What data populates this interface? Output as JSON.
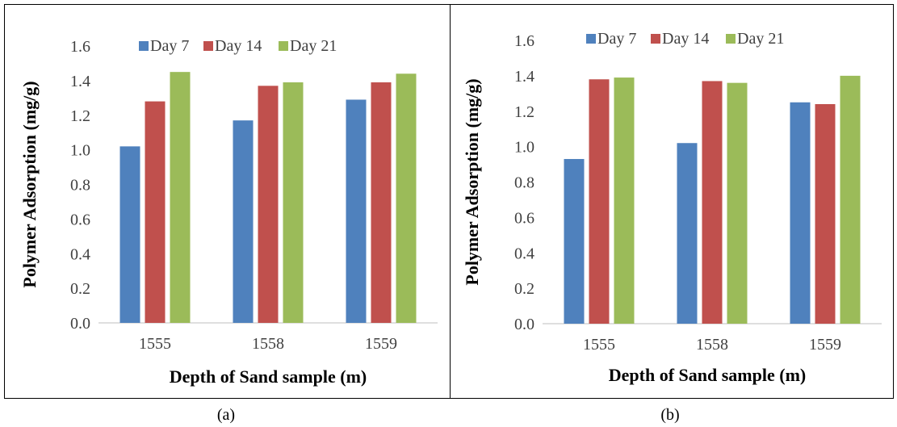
{
  "figure": {
    "captions": [
      "(a)",
      "(b)"
    ]
  },
  "colors": {
    "day7": "#4F81BD",
    "day14": "#C0504D",
    "day21": "#9BBB59",
    "frame": "#000000",
    "axis": "#BFBFBF"
  },
  "chart_data": [
    {
      "type": "bar",
      "categories": [
        "1555",
        "1558",
        "1559"
      ],
      "series": [
        {
          "name": "Day 7",
          "values": [
            1.02,
            1.17,
            1.29
          ]
        },
        {
          "name": "Day 14",
          "values": [
            1.28,
            1.37,
            1.39
          ]
        },
        {
          "name": "Day 21",
          "values": [
            1.45,
            1.39,
            1.44
          ]
        }
      ],
      "title": "",
      "xlabel": "Depth of Sand sample (m)",
      "ylabel": "Polymer Adsorption (mg/g)",
      "ylim": [
        0,
        1.6
      ],
      "yticks": [
        "0.0",
        "0.2",
        "0.4",
        "0.6",
        "0.8",
        "1.0",
        "1.2",
        "1.4",
        "1.6"
      ],
      "grid": false,
      "legend": "top"
    },
    {
      "type": "bar",
      "categories": [
        "1555",
        "1558",
        "1559"
      ],
      "series": [
        {
          "name": "Day 7",
          "values": [
            0.93,
            1.02,
            1.25
          ]
        },
        {
          "name": "Day 14",
          "values": [
            1.38,
            1.37,
            1.24
          ]
        },
        {
          "name": "Day 21",
          "values": [
            1.39,
            1.36,
            1.4
          ]
        }
      ],
      "title": "",
      "xlabel": "Depth of Sand sample (m)",
      "ylabel": "Polymer Adsorption (mg/g)",
      "ylim": [
        0,
        1.6
      ],
      "yticks": [
        "0.0",
        "0.2",
        "0.4",
        "0.6",
        "0.8",
        "1.0",
        "1.2",
        "1.4",
        "1.6"
      ],
      "grid": false,
      "legend": "top"
    }
  ]
}
